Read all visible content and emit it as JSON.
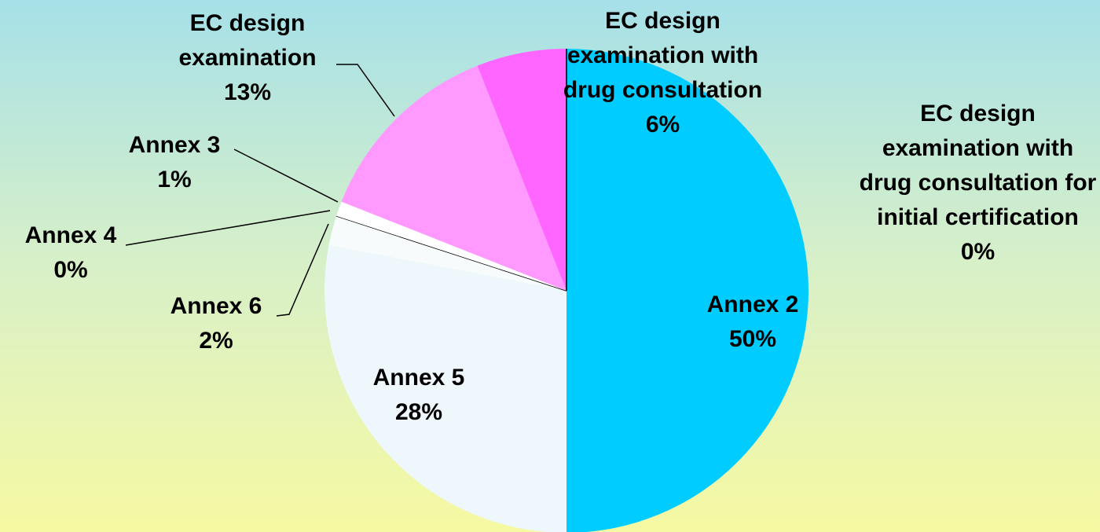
{
  "chart_data": {
    "type": "pie",
    "categories": [
      "Annex 2",
      "Annex 5",
      "Annex 6",
      "Annex 4",
      "Annex 3",
      "EC design examination",
      "EC design examination with drug consultation",
      "EC design examination with drug consultation for initial certification"
    ],
    "values": [
      50,
      28,
      2,
      0,
      1,
      13,
      6,
      0
    ],
    "value_labels": [
      "50%",
      "28%",
      "2%",
      "0%",
      "1%",
      "13%",
      "6%",
      "0%"
    ],
    "colors": [
      "#00ccff",
      "#eef7fb",
      "#f7fbfc",
      "#000000",
      "#ffffff",
      "#ff99ff",
      "#ff66ff",
      "#ff66ff"
    ]
  }
}
